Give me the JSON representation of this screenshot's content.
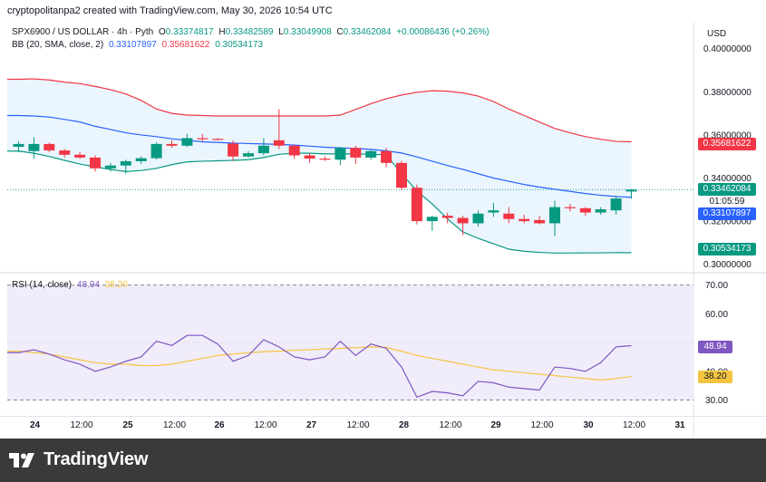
{
  "caption": "cryptopolitanpa2 created with TradingView.com, May 30, 2026 10:54 UTC",
  "legend": {
    "symbol": "SPX6900 / US DOLLAR · 4h · Pyth",
    "open_label": "O",
    "open": "0.33374817",
    "high_label": "H",
    "high": "0.33482589",
    "low_label": "L",
    "low": "0.33049908",
    "close_label": "C",
    "close": "0.33462084",
    "change": "+0.00086436 (+0.26%)",
    "bb_label": "BB (20, SMA, close, 2)",
    "bb_basis": "0.33107897",
    "bb_upper": "0.35681622",
    "bb_lower": "0.30534173",
    "rsi_label": "RSI (14, close)",
    "rsi_value": "48.94",
    "rsi_ma": "38.20"
  },
  "currency": "USD",
  "price_tags": {
    "upper": "0.35681622",
    "close": "0.33462084",
    "countdown": "01:05:59",
    "basis": "0.33107897",
    "lower": "0.30534173",
    "rsi": "48.94",
    "rsi_ma": "38.20"
  },
  "colors": {
    "up": "#089981",
    "down": "#f23645",
    "basis": "#2962ff",
    "upper": "#f23645",
    "lower": "#089981",
    "band_fill": "#e3f2fd",
    "rsi": "#7e57c2",
    "rsi_ma": "#f5c542",
    "rsi_fill": "#f1ecfa"
  },
  "logo_text": "TradingView",
  "chart_data": [
    {
      "type": "candlestick",
      "title": "SPX6900 / US DOLLAR · 4h · Pyth",
      "yaxis_ticks": [
        "0.40000000",
        "0.38000000",
        "0.36000000",
        "0.34000000",
        "0.32000000",
        "0.30000000"
      ],
      "ylim": [
        0.2965,
        0.4125
      ],
      "xaxis_ticks": [
        "24",
        "12:00",
        "25",
        "12:00",
        "26",
        "12:00",
        "27",
        "12:00",
        "28",
        "12:00",
        "29",
        "12:00",
        "30",
        "12:00",
        "31"
      ],
      "candles": [
        {
          "o": 0.3545,
          "h": 0.357,
          "l": 0.352,
          "c": 0.3558
        },
        {
          "o": 0.3525,
          "h": 0.359,
          "l": 0.349,
          "c": 0.3558
        },
        {
          "o": 0.3558,
          "h": 0.3565,
          "l": 0.352,
          "c": 0.3528
        },
        {
          "o": 0.3528,
          "h": 0.3535,
          "l": 0.3495,
          "c": 0.3508
        },
        {
          "o": 0.3508,
          "h": 0.352,
          "l": 0.349,
          "c": 0.3495
        },
        {
          "o": 0.3495,
          "h": 0.3505,
          "l": 0.343,
          "c": 0.3445
        },
        {
          "o": 0.3445,
          "h": 0.347,
          "l": 0.343,
          "c": 0.3458
        },
        {
          "o": 0.3458,
          "h": 0.3485,
          "l": 0.342,
          "c": 0.3478
        },
        {
          "o": 0.3478,
          "h": 0.35,
          "l": 0.3465,
          "c": 0.3492
        },
        {
          "o": 0.3492,
          "h": 0.3565,
          "l": 0.3485,
          "c": 0.3558
        },
        {
          "o": 0.3558,
          "h": 0.3575,
          "l": 0.354,
          "c": 0.355
        },
        {
          "o": 0.355,
          "h": 0.3605,
          "l": 0.3545,
          "c": 0.3585
        },
        {
          "o": 0.3585,
          "h": 0.3605,
          "l": 0.357,
          "c": 0.3582
        },
        {
          "o": 0.3582,
          "h": 0.3585,
          "l": 0.3575,
          "c": 0.3578
        },
        {
          "o": 0.356,
          "h": 0.3575,
          "l": 0.348,
          "c": 0.35
        },
        {
          "o": 0.35,
          "h": 0.3525,
          "l": 0.3495,
          "c": 0.3515
        },
        {
          "o": 0.3515,
          "h": 0.3585,
          "l": 0.3505,
          "c": 0.355
        },
        {
          "o": 0.3575,
          "h": 0.372,
          "l": 0.3535,
          "c": 0.355
        },
        {
          "o": 0.355,
          "h": 0.3555,
          "l": 0.349,
          "c": 0.3505
        },
        {
          "o": 0.3505,
          "h": 0.3515,
          "l": 0.347,
          "c": 0.349
        },
        {
          "o": 0.349,
          "h": 0.35,
          "l": 0.348,
          "c": 0.3485
        },
        {
          "o": 0.3485,
          "h": 0.3545,
          "l": 0.346,
          "c": 0.354
        },
        {
          "o": 0.354,
          "h": 0.355,
          "l": 0.3465,
          "c": 0.3495
        },
        {
          "o": 0.3495,
          "h": 0.353,
          "l": 0.3485,
          "c": 0.3525
        },
        {
          "o": 0.3525,
          "h": 0.354,
          "l": 0.345,
          "c": 0.347
        },
        {
          "o": 0.347,
          "h": 0.348,
          "l": 0.3345,
          "c": 0.3355
        },
        {
          "o": 0.3355,
          "h": 0.337,
          "l": 0.3185,
          "c": 0.32
        },
        {
          "o": 0.32,
          "h": 0.3225,
          "l": 0.3155,
          "c": 0.322
        },
        {
          "o": 0.3225,
          "h": 0.324,
          "l": 0.319,
          "c": 0.3215
        },
        {
          "o": 0.3215,
          "h": 0.3225,
          "l": 0.3135,
          "c": 0.319
        },
        {
          "o": 0.319,
          "h": 0.325,
          "l": 0.3175,
          "c": 0.3235
        },
        {
          "o": 0.324,
          "h": 0.3285,
          "l": 0.322,
          "c": 0.325
        },
        {
          "o": 0.3235,
          "h": 0.3265,
          "l": 0.319,
          "c": 0.321
        },
        {
          "o": 0.321,
          "h": 0.323,
          "l": 0.319,
          "c": 0.32
        },
        {
          "o": 0.3205,
          "h": 0.3225,
          "l": 0.3185,
          "c": 0.319
        },
        {
          "o": 0.319,
          "h": 0.3295,
          "l": 0.313,
          "c": 0.3265
        },
        {
          "o": 0.3265,
          "h": 0.328,
          "l": 0.3245,
          "c": 0.326
        },
        {
          "o": 0.326,
          "h": 0.3265,
          "l": 0.3225,
          "c": 0.324
        },
        {
          "o": 0.324,
          "h": 0.3265,
          "l": 0.323,
          "c": 0.3255
        },
        {
          "o": 0.325,
          "h": 0.332,
          "l": 0.323,
          "c": 0.3305
        },
        {
          "o": 0.33374817,
          "h": 0.33482589,
          "l": 0.33049908,
          "c": 0.33462084
        }
      ],
      "bb_basis": [
        0.369,
        0.3688,
        0.3683,
        0.3672,
        0.366,
        0.364,
        0.3625,
        0.361,
        0.36,
        0.3592,
        0.3582,
        0.3575,
        0.3568,
        0.3565,
        0.3562,
        0.356,
        0.3558,
        0.3556,
        0.3553,
        0.3548,
        0.3543,
        0.354,
        0.3537,
        0.3533,
        0.3526,
        0.3516,
        0.3498,
        0.3478,
        0.3458,
        0.344,
        0.342,
        0.34,
        0.3385,
        0.337,
        0.3358,
        0.3348,
        0.3338,
        0.3328,
        0.332,
        0.3314,
        0.33107897
      ],
      "bb_upper": [
        0.3858,
        0.386,
        0.3855,
        0.3845,
        0.3838,
        0.3825,
        0.381,
        0.379,
        0.376,
        0.372,
        0.37,
        0.3692,
        0.369,
        0.3688,
        0.3688,
        0.3688,
        0.3688,
        0.3688,
        0.3688,
        0.3688,
        0.3688,
        0.3692,
        0.3718,
        0.3745,
        0.3768,
        0.3785,
        0.3798,
        0.3805,
        0.3803,
        0.3795,
        0.378,
        0.3755,
        0.372,
        0.369,
        0.366,
        0.363,
        0.361,
        0.3592,
        0.358,
        0.357,
        0.35681622
      ],
      "bb_lower": [
        0.3525,
        0.3515,
        0.35,
        0.3482,
        0.3465,
        0.3452,
        0.344,
        0.343,
        0.3435,
        0.3445,
        0.3462,
        0.3475,
        0.3478,
        0.348,
        0.3482,
        0.3485,
        0.3495,
        0.351,
        0.3515,
        0.3515,
        0.3512,
        0.3512,
        0.3512,
        0.351,
        0.3508,
        0.342,
        0.334,
        0.328,
        0.321,
        0.315,
        0.312,
        0.3095,
        0.307,
        0.306,
        0.3055,
        0.3052,
        0.3052,
        0.3053,
        0.3053,
        0.3054,
        0.30534173
      ]
    },
    {
      "type": "line",
      "title": "RSI (14, close)",
      "yaxis_ticks": [
        "70.00",
        "60.00",
        "40.00",
        "30.00"
      ],
      "ylim": [
        24.5,
        74.0
      ],
      "band": [
        30,
        70
      ],
      "series": [
        {
          "name": "RSI",
          "values": [
            46.5,
            47.5,
            46.0,
            44.0,
            42.5,
            40.0,
            41.5,
            43.5,
            45.0,
            50.5,
            49.0,
            52.5,
            52.5,
            49.5,
            43.5,
            45.5,
            51.0,
            48.5,
            45.0,
            44.0,
            45.0,
            50.5,
            45.5,
            49.5,
            48.0,
            41.5,
            31.0,
            33.0,
            32.5,
            31.5,
            36.5,
            36.0,
            34.5,
            34.0,
            33.5,
            41.5,
            41.0,
            40.0,
            43.0,
            48.5,
            48.94
          ]
        },
        {
          "name": "RSI MA",
          "values": [
            47.0,
            46.5,
            46.0,
            45.0,
            44.0,
            43.0,
            42.5,
            42.5,
            42.0,
            42.0,
            42.5,
            43.5,
            44.5,
            45.5,
            46.0,
            46.5,
            46.8,
            47.0,
            47.3,
            47.5,
            47.8,
            48.0,
            48.2,
            48.5,
            48.3,
            47.0,
            45.5,
            44.5,
            43.5,
            42.5,
            41.5,
            40.5,
            40.0,
            39.5,
            39.0,
            38.5,
            38.0,
            37.5,
            37.0,
            37.5,
            38.2
          ]
        }
      ]
    }
  ]
}
